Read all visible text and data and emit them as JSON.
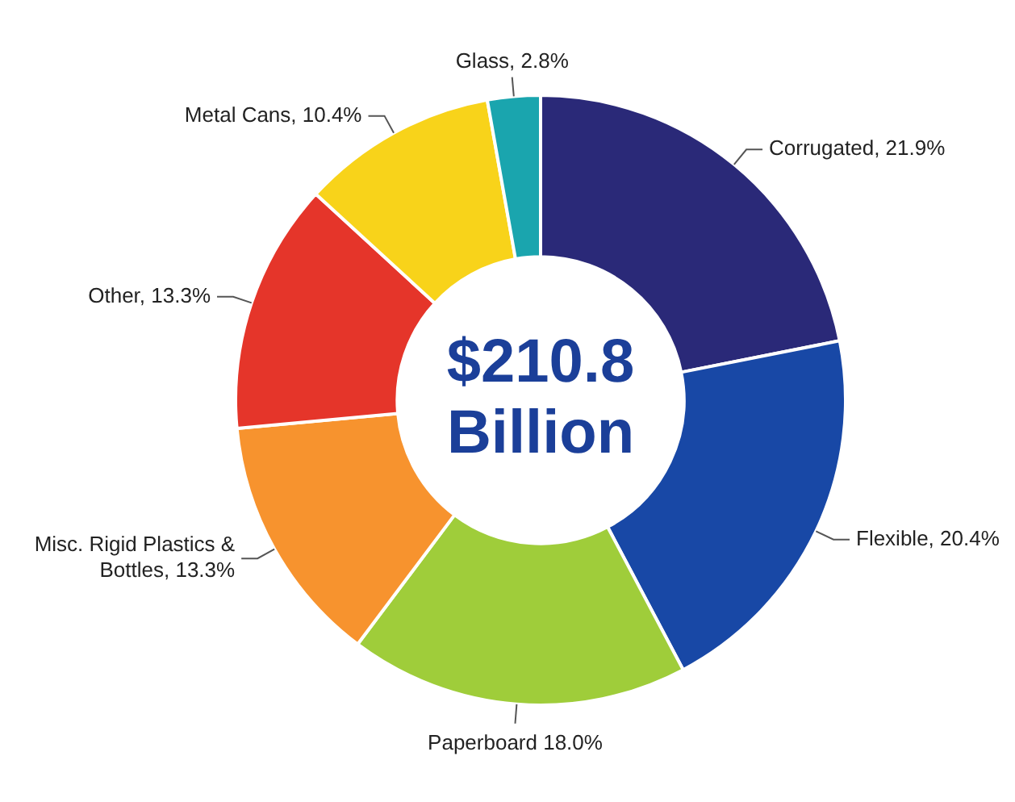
{
  "chart_data": {
    "type": "donut",
    "categories": [
      "Corrugated, 21.9%",
      "Flexible, 20.4%",
      "Paperboard 18.0%",
      "Misc. Rigid Plastics & Bottles, 13.3%",
      "Other, 13.3%",
      "Metal Cans, 10.4%",
      "Glass, 2.8%"
    ],
    "values": [
      21.9,
      20.4,
      18.0,
      13.3,
      13.3,
      10.4,
      2.8
    ],
    "colors": [
      "#2a2978",
      "#1848a6",
      "#9fcd3a",
      "#f7932e",
      "#e5352a",
      "#f8d31a",
      "#1aa5ae"
    ],
    "annotations": [
      "$210.8\nBillion"
    ],
    "legend": false
  }
}
